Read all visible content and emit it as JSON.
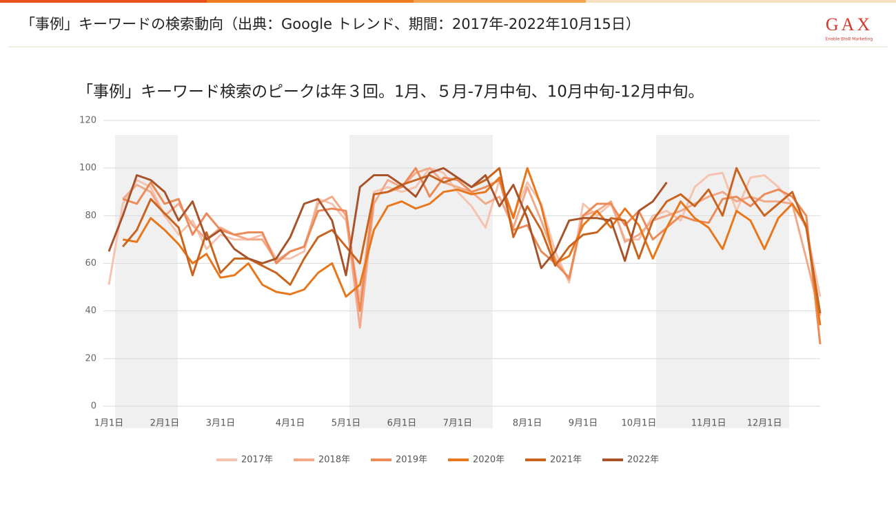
{
  "header": {
    "title": "「事例」キーワードの検索動向（出典：Google トレンド、期間：2017年-2022年10月15日）",
    "logo": "GAX",
    "tagline": "Enable BtoB Marketing"
  },
  "chart_data": {
    "type": "line",
    "title": "「事例」キーワード検索のピークは年３回。1月、５月-7月中旬、10月中旬-12月中旬。",
    "categories": [
      "1月1日",
      null,
      null,
      null,
      "2月1日",
      null,
      null,
      null,
      "3月1日",
      null,
      null,
      null,
      null,
      "4月1日",
      null,
      null,
      null,
      "5月1日",
      null,
      null,
      null,
      "6月1日",
      null,
      null,
      null,
      "7月1日",
      null,
      null,
      null,
      null,
      "8月1日",
      null,
      null,
      null,
      "9月1日",
      null,
      null,
      null,
      "10月1日",
      null,
      null,
      null,
      null,
      "11月1日",
      null,
      null,
      null,
      "12月1日",
      null,
      null,
      null,
      null
    ],
    "series": [
      {
        "name": "2017年",
        "color": "#f6c3b0",
        "values": [
          51,
          85,
          95,
          92,
          80,
          72,
          78,
          66,
          72,
          70,
          70,
          72,
          62,
          62,
          65,
          87,
          85,
          78,
          45,
          90,
          92,
          90,
          92,
          100,
          98,
          90,
          84,
          75,
          95,
          80,
          94,
          85,
          65,
          52,
          85,
          80,
          85,
          70,
          70,
          80,
          82,
          78,
          92,
          97,
          98,
          82,
          96,
          97,
          92,
          85,
          75,
          46
        ]
      },
      {
        "name": "2018年",
        "color": "#f2a989",
        "values": [
          null,
          87,
          93,
          90,
          80,
          85,
          76,
          70,
          75,
          72,
          70,
          70,
          61,
          65,
          67,
          85,
          88,
          80,
          33,
          85,
          95,
          92,
          98,
          100,
          94,
          92,
          90,
          85,
          88,
          75,
          92,
          78,
          62,
          53,
          80,
          82,
          86,
          69,
          72,
          78,
          80,
          82,
          85,
          88,
          90,
          86,
          88,
          86,
          86,
          85,
          62,
          38
        ]
      },
      {
        "name": "2019年",
        "color": "#ec8a58",
        "values": [
          null,
          87,
          85,
          94,
          85,
          87,
          72,
          81,
          74,
          72,
          73,
          73,
          60,
          65,
          67,
          82,
          83,
          82,
          40,
          89,
          90,
          92,
          100,
          88,
          96,
          95,
          90,
          92,
          95,
          74,
          76,
          65,
          60,
          54,
          80,
          85,
          85,
          76,
          82,
          70,
          75,
          80,
          78,
          77,
          87,
          88,
          84,
          89,
          91,
          88,
          80,
          26
        ]
      },
      {
        "name": "2020年",
        "color": "#e8771b",
        "values": [
          null,
          70,
          69,
          79,
          74,
          68,
          60,
          64,
          54,
          55,
          60,
          51,
          48,
          47,
          49,
          56,
          60,
          46,
          51,
          74,
          84,
          86,
          83,
          85,
          90,
          91,
          89,
          90,
          96,
          79,
          100,
          84,
          60,
          63,
          76,
          82,
          75,
          83,
          76,
          62,
          75,
          86,
          79,
          75,
          66,
          82,
          78,
          66,
          79,
          85,
          76,
          34
        ]
      },
      {
        "name": "2021年",
        "color": "#c9641e",
        "values": [
          null,
          67,
          74,
          87,
          81,
          75,
          55,
          73,
          56,
          62,
          62,
          59,
          56,
          51,
          62,
          71,
          74,
          67,
          60,
          89,
          90,
          93,
          95,
          97,
          94,
          96,
          92,
          95,
          100,
          71,
          84,
          74,
          59,
          67,
          72,
          73,
          79,
          78,
          62,
          78,
          86,
          89,
          84,
          91,
          80,
          100,
          88,
          80,
          85,
          90,
          75,
          39
        ]
      },
      {
        "name": "2022年",
        "color": "#a8532a",
        "values": [
          65,
          80,
          97,
          95,
          90,
          78,
          86,
          70,
          74,
          66,
          62,
          60,
          62,
          71,
          85,
          87,
          78,
          55,
          92,
          97,
          97,
          93,
          88,
          98,
          100,
          96,
          92,
          97,
          84,
          93,
          79,
          58,
          65,
          78,
          79,
          79,
          78,
          61,
          82,
          86,
          94,
          null,
          null,
          null,
          null,
          null,
          null,
          null,
          null,
          null,
          null,
          null
        ]
      }
    ],
    "ylim": [
      0,
      120
    ],
    "yticks": [
      0,
      20,
      40,
      60,
      80,
      100,
      120
    ],
    "grid": true,
    "legend": "bottom"
  }
}
